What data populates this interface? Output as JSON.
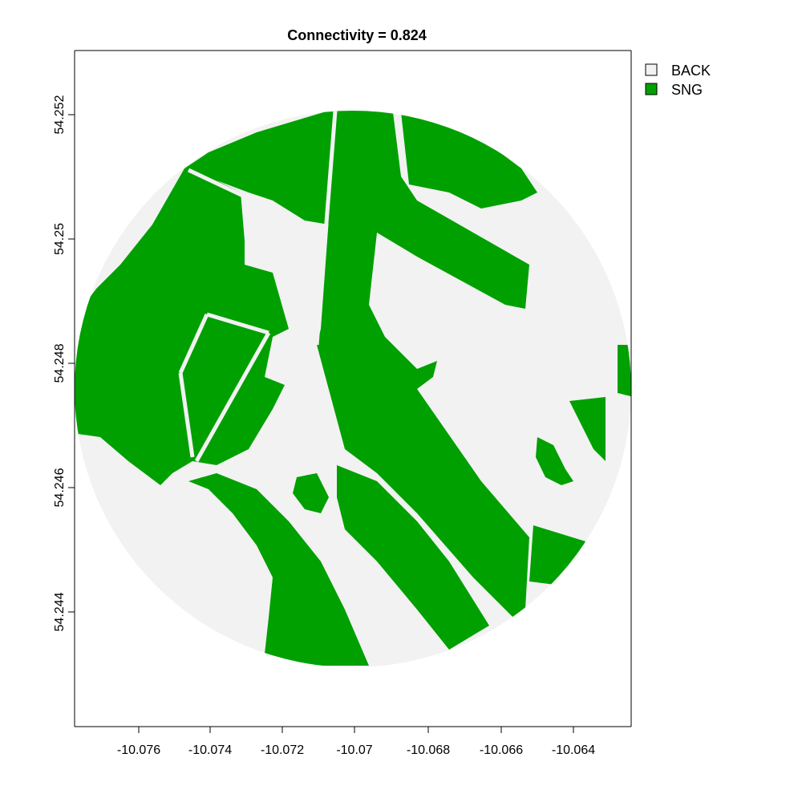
{
  "title": "Connectivity = 0.824",
  "colors": {
    "background_class": "#f2f2f2",
    "sng_class": "#00a000",
    "legend_back_swatch": "#f2f2f2",
    "axis": "#000000"
  },
  "legend": {
    "items": [
      {
        "label": "BACK",
        "color": "#f2f2f2"
      },
      {
        "label": "SNG",
        "color": "#00a000"
      }
    ]
  },
  "axes": {
    "x_ticks": [
      "-10.076",
      "-10.074",
      "-10.072",
      "-10.07",
      "-10.068",
      "-10.066",
      "-10.064"
    ],
    "y_ticks": [
      "54.252",
      "54.25",
      "54.248",
      "54.246",
      "54.244"
    ]
  }
}
